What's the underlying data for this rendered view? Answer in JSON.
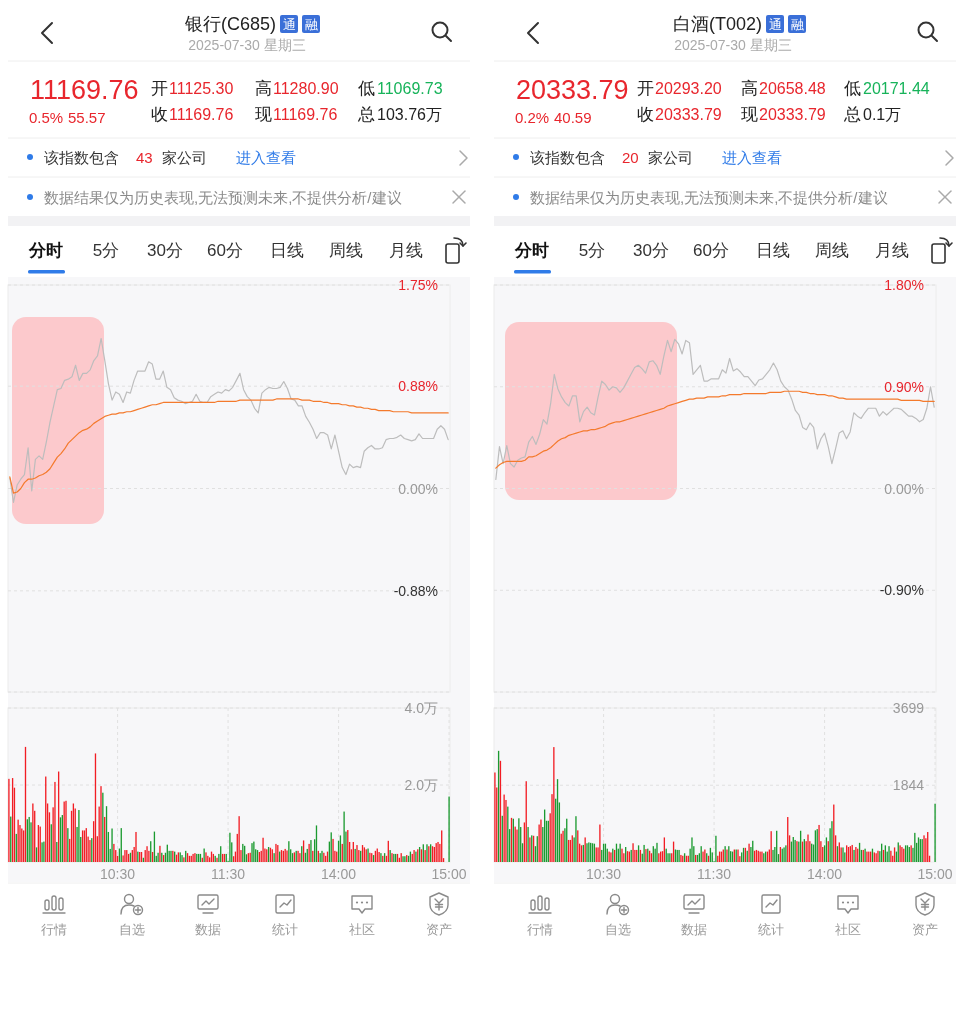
{
  "chart_data": [
    {
      "type": "other",
      "title": "银行(C685)",
      "subtitle": "2025-07-30 星期三",
      "annotations": [
        "通",
        "融",
        "11169.76",
        "0.5%",
        "55.57",
        "开",
        "11125.30",
        "高",
        "11280.90",
        "低",
        "11069.73",
        "收",
        "11169.76",
        "现",
        "11169.76",
        "总",
        "103.76万",
        "该指数包含",
        "43",
        "家公司",
        "进入查看",
        "数据结果仅为历史表现,无法预测未来,不提供分析/建议",
        "分时",
        "5分",
        "30分",
        "60分",
        "日线",
        "周线",
        "月线"
      ]
    },
    {
      "type": "line",
      "ylim": [
        -1.75,
        1.75
      ],
      "yticks": [
        {
          "value": 1.75,
          "label": "1.75%"
        },
        {
          "value": 0.88,
          "label": "0.88%"
        },
        {
          "value": 0,
          "label": "0.00%"
        },
        {
          "value": -0.88,
          "label": "-0.88%"
        },
        {
          "value": -1.75,
          "label": null
        }
      ],
      "grid": "y",
      "categories": [
        null,
        null,
        null,
        null,
        null,
        null,
        null,
        null,
        null,
        null,
        null,
        null,
        null,
        null,
        null,
        null,
        null,
        null,
        null,
        null,
        null,
        null,
        null,
        null,
        null,
        null,
        null,
        null,
        null,
        null,
        null,
        null,
        null,
        null,
        null,
        null,
        null,
        null,
        null,
        null,
        null,
        null,
        null,
        null,
        null,
        null,
        null,
        null,
        null,
        null,
        null,
        null,
        null,
        null,
        null,
        null,
        null,
        null,
        null,
        null,
        null,
        null,
        null,
        null,
        null,
        null,
        null,
        null,
        null,
        null,
        null,
        null,
        null,
        null,
        null,
        null,
        null,
        null,
        null,
        null,
        null,
        null,
        null,
        null,
        null,
        null,
        null,
        null,
        null,
        null,
        null,
        null,
        null,
        null,
        null,
        null,
        null,
        null,
        null,
        null,
        null,
        null,
        null,
        null,
        null,
        null,
        null,
        null,
        null,
        null,
        null,
        null,
        null,
        null,
        null,
        null,
        null,
        null,
        null,
        null,
        null
      ],
      "series": [
        {
          "color": "#bdbdbd",
          "values": [
            0.09,
            -0.12,
            0.03,
            0.08,
            0.12,
            0.35,
            -0.02,
            0.25,
            0.28,
            0.25,
            0.4,
            0.57,
            0.71,
            0.85,
            0.86,
            0.93,
            0.94,
            0.96,
            1.06,
            0.93,
            0.99,
            0.99,
            1.02,
            1.1,
            1.14,
            1.29,
            1.1,
            0.9,
            0.76,
            0.83,
            0.81,
            0.74,
            0.83,
            0.82,
            0.93,
            1.01,
            1.01,
            1.01,
            1.09,
            1.07,
            0.94,
            0.94,
            1.01,
            0.87,
            0.85,
            0.78,
            0.76,
            0.75,
            0.73,
            0.74,
            0.75,
            0.81,
            0.75,
            0.74,
            0.74,
            0.79,
            0.81,
            0.83,
            0.82,
            0.85,
            0.84,
            0.87,
            0.93,
            0.99,
            0.85,
            0.79,
            0.76,
            0.69,
            0.65,
            0.82,
            0.85,
            0.87,
            0.86,
            0.86,
            0.87,
            0.92,
            0.86,
            0.77,
            0.76,
            0.71,
            0.71,
            0.62,
            0.57,
            0.51,
            0.43,
            0.48,
            0.48,
            0.46,
            0.34,
            0.46,
            0.32,
            0.18,
            0.12,
            0.21,
            0.18,
            0.19,
            0.18,
            0.32,
            0.35,
            0.37,
            0.34,
            0.34,
            0.35,
            0.42,
            0.43,
            0.43,
            0.44,
            0.46,
            0.43,
            0.42,
            0.41,
            0.42,
            0.47,
            0.43,
            0.43,
            0.43,
            0.43,
            0.51,
            0.54,
            0.51,
            0.42
          ]
        },
        {
          "color": "#f47a2c",
          "values": [
            0.1,
            -0.04,
            -0.03,
            0.0,
            0.05,
            0.08,
            0.08,
            0.09,
            0.11,
            0.12,
            0.14,
            0.17,
            0.22,
            0.27,
            0.3,
            0.34,
            0.39,
            0.42,
            0.45,
            0.48,
            0.5,
            0.51,
            0.53,
            0.56,
            0.58,
            0.6,
            0.62,
            0.63,
            0.64,
            0.64,
            0.65,
            0.65,
            0.66,
            0.66,
            0.67,
            0.68,
            0.69,
            0.7,
            0.71,
            0.72,
            0.72,
            0.73,
            0.74,
            0.74,
            0.74,
            0.74,
            0.74,
            0.74,
            0.74,
            0.74,
            0.74,
            0.74,
            0.74,
            0.74,
            0.74,
            0.74,
            0.74,
            0.75,
            0.75,
            0.75,
            0.75,
            0.75,
            0.75,
            0.76,
            0.76,
            0.76,
            0.76,
            0.76,
            0.76,
            0.76,
            0.76,
            0.76,
            0.76,
            0.77,
            0.77,
            0.77,
            0.77,
            0.77,
            0.77,
            0.77,
            0.76,
            0.76,
            0.76,
            0.75,
            0.75,
            0.75,
            0.74,
            0.74,
            0.73,
            0.73,
            0.73,
            0.72,
            0.72,
            0.71,
            0.71,
            0.7,
            0.7,
            0.69,
            0.69,
            0.68,
            0.68,
            0.67,
            0.67,
            0.67,
            0.67,
            0.66,
            0.66,
            0.66,
            0.66,
            0.66,
            0.65,
            0.65,
            0.65,
            0.65,
            0.65,
            0.65,
            0.65,
            0.65,
            0.65,
            0.65,
            0.65
          ]
        }
      ]
    },
    {
      "type": "bar",
      "ylim": [
        0,
        4
      ],
      "yticks": [
        {
          "value": 2,
          "label": "2.0万"
        },
        {
          "value": 4,
          "label": "4.0万"
        }
      ],
      "grid": true,
      "categories": [
        null,
        null,
        null,
        null,
        null,
        null,
        null,
        null,
        null,
        null,
        null,
        null,
        null,
        null,
        null,
        null,
        null,
        null,
        null,
        null,
        null,
        null,
        null,
        null,
        null,
        null,
        null,
        null,
        null,
        null,
        null,
        null,
        null,
        null,
        null,
        null,
        null,
        null,
        null,
        null,
        null,
        null,
        null,
        null,
        null,
        null,
        null,
        null,
        null,
        null,
        null,
        null,
        null,
        null,
        null,
        null,
        null,
        null,
        null,
        "10:30",
        null,
        null,
        null,
        null,
        null,
        null,
        null,
        null,
        null,
        null,
        null,
        null,
        null,
        null,
        null,
        null,
        null,
        null,
        null,
        null,
        null,
        null,
        null,
        null,
        null,
        null,
        null,
        null,
        null,
        null,
        null,
        null,
        null,
        null,
        null,
        null,
        null,
        null,
        null,
        null,
        null,
        null,
        null,
        null,
        null,
        null,
        null,
        null,
        null,
        null,
        null,
        null,
        null,
        null,
        null,
        null,
        null,
        null,
        null,
        "11:30",
        null,
        null,
        null,
        null,
        null,
        null,
        null,
        null,
        null,
        null,
        null,
        null,
        null,
        null,
        null,
        null,
        null,
        null,
        null,
        null,
        null,
        null,
        null,
        null,
        null,
        null,
        null,
        null,
        null,
        null,
        null,
        null,
        null,
        null,
        null,
        null,
        null,
        null,
        null,
        null,
        null,
        null,
        null,
        null,
        null,
        null,
        null,
        null,
        null,
        null,
        null,
        null,
        null,
        null,
        null,
        null,
        null,
        null,
        null,
        "14:00",
        null,
        null,
        null,
        null,
        null,
        null,
        null,
        null,
        null,
        null,
        null,
        null,
        null,
        null,
        null,
        null,
        null,
        null,
        null,
        null,
        null,
        null,
        null,
        null,
        null,
        null,
        null,
        null,
        null,
        null,
        null,
        null,
        null,
        null,
        null,
        null,
        null,
        null,
        null,
        null,
        null,
        null,
        null,
        null,
        null,
        null,
        null,
        null,
        null,
        null,
        null,
        null,
        null,
        null,
        null,
        null,
        null,
        null,
        null,
        "15:00"
      ],
      "values": [
        2.16,
        1.18,
        2.18,
        1.93,
        0.73,
        1.1,
        0.96,
        0.87,
        0.82,
        2.99,
        1.11,
        1.17,
        1.03,
        1.52,
        1.33,
        0.38,
        0.96,
        0.92,
        0.51,
        0.53,
        2.22,
        1.52,
        1.29,
        0.98,
        1.42,
        2.08,
        0.52,
        2.35,
        1.16,
        1.22,
        1.57,
        1.59,
        0.88,
        0.6,
        1.33,
        1.52,
        1.39,
        0.91,
        1.35,
        0.65,
        0.82,
        0.82,
        0.88,
        0.66,
        0.57,
        0.62,
        1.06,
        2.82,
        0.67,
        1.44,
        1.97,
        1.8,
        1.17,
        1.45,
        0.78,
        0.34,
        0.87,
        0.47,
        0.31,
        0.16,
        0.35,
        0.88,
        0.17,
        0.31,
        0.31,
        0.21,
        0.24,
        0.31,
        0.39,
        0.78,
        0.27,
        0.26,
        0.26,
        0.11,
        0.31,
        0.41,
        0.29,
        0.54,
        0.26,
        0.79,
        0.16,
        0.24,
        0.42,
        0.24,
        0.18,
        0.24,
        0.45,
        0.29,
        0.29,
        0.29,
        0.27,
        0.19,
        0.25,
        0.25,
        0.18,
        0.12,
        0.29,
        0.23,
        0.16,
        0.16,
        0.21,
        0.23,
        0.21,
        0.21,
        0.21,
        0.11,
        0.35,
        0.25,
        0.16,
        0.12,
        0.27,
        0.21,
        0.16,
        0.11,
        0.21,
        0.41,
        0.21,
        0.21,
        0.21,
        0.03,
        0.76,
        0.51,
        0.15,
        0.27,
        0.73,
        1.19,
        0.31,
        0.47,
        0.42,
        0.2,
        0.23,
        0.24,
        0.49,
        0.53,
        0.33,
        0.31,
        0.26,
        0.29,
        0.63,
        0.35,
        0.33,
        0.39,
        0.37,
        0.33,
        0.23,
        0.47,
        0.44,
        0.27,
        0.31,
        0.29,
        0.34,
        0.3,
        0.54,
        0.33,
        0.23,
        0.25,
        0.29,
        0.29,
        0.23,
        0.41,
        0.56,
        0.24,
        0.34,
        0.47,
        0.57,
        0.29,
        0.59,
        0.95,
        0.29,
        0.23,
        0.29,
        0.24,
        0.16,
        0.27,
        0.53,
        0.77,
        0.6,
        0.29,
        0.27,
        0.55,
        0.69,
        0.47,
        1.31,
        0.79,
        0.83,
        0.52,
        0.33,
        0.52,
        0.34,
        0.44,
        0.31,
        0.29,
        0.44,
        0.38,
        0.33,
        0.35,
        0.24,
        0.23,
        0.18,
        0.29,
        0.35,
        0.26,
        0.23,
        0.16,
        0.23,
        0.16,
        0.55,
        0.31,
        0.23,
        0.21,
        0.21,
        0.21,
        0.11,
        0.23,
        0.15,
        0.15,
        0.18,
        0.16,
        0.27,
        0.21,
        0.31,
        0.27,
        0.33,
        0.39,
        0.33,
        0.46,
        0.31,
        0.46,
        0.41,
        0.46,
        0.41,
        0.39,
        0.49,
        0.52,
        0.47,
        0.82,
        0.1,
        null,
        null,
        1.7
      ],
      "colors": [
        "#f21d24",
        "#1b9a30",
        "#f21d24",
        "#f21d24",
        "#1b9a30",
        "#f21d24",
        "#f21d24",
        "#f21d24",
        "#f21d24",
        "#f21d24",
        "#1b9a30",
        "#1b9a30",
        "#1b9a30",
        "#f21d24",
        "#f21d24",
        "#1b9a30",
        "#f21d24",
        "#f21d24",
        "#1b9a30",
        "#1b9a30",
        "#f21d24",
        "#f21d24",
        "#f21d24",
        "#1b9a30",
        "#f21d24",
        "#f21d24",
        "#1b9a30",
        "#f21d24",
        "#1b9a30",
        "#1b9a30",
        "#f21d24",
        "#f21d24",
        "#1b9a30",
        "#f21d24",
        "#f21d24",
        "#f21d24",
        "#f21d24",
        "#1b9a30",
        "#1b9a30",
        "#1b9a30",
        "#f21d24",
        "#f21d24",
        "#f21d24",
        "#f21d24",
        "#f21d24",
        "#1b9a30",
        "#f21d24",
        "#f21d24",
        "#f21d24",
        "#f21d24",
        "#f21d24",
        "#1b9a30",
        "#f21d24",
        "#1b9a30",
        "#1b9a30",
        "#1b9a30",
        "#1b9a30",
        "#f21d24",
        "#f21d24",
        "#f21d24",
        "#1b9a30",
        "#1b9a30",
        "#f21d24",
        "#f21d24",
        "#f21d24",
        "#f21d24",
        "#1b9a30",
        "#f21d24",
        "#f21d24",
        "#f21d24",
        "#1b9a30",
        "#f21d24",
        "#f21d24",
        "#1b9a30",
        "#f21d24",
        "#f21d24",
        "#f21d24",
        "#1b9a30",
        "#f21d24",
        "#1b9a30",
        "#1b9a30",
        "#1b9a30",
        "#f21d24",
        "#1b9a30",
        "#f21d24",
        "#1b9a30",
        "#1b9a30",
        "#1b9a30",
        "#1b9a30",
        "#f21d24",
        "#1b9a30",
        "#f21d24",
        "#f21d24",
        "#1b9a30",
        "#1b9a30",
        "#f21d24",
        "#1b9a30",
        "#f21d24",
        "#f21d24",
        "#f21d24",
        "#f21d24",
        "#f21d24",
        "#1b9a30",
        "#1b9a30",
        "#1b9a30",
        "#f21d24",
        "#1b9a30",
        "#f21d24",
        "#f21d24",
        "#f21d24",
        "#f21d24",
        "#f21d24",
        "#1b9a30",
        "#f21d24",
        "#1b9a30",
        "#1b9a30",
        "#f21d24",
        "#f21d24",
        "#1b9a30",
        "#1b9a30",
        "#1b9a30",
        "#1b9a30",
        "#f21d24",
        "#f21d24",
        "#f21d24",
        "#f21d24",
        "#f21d24",
        "#1b9a30",
        "#1b9a30",
        "#1b9a30",
        "#f21d24",
        "#f21d24",
        "#1b9a30",
        "#1b9a30",
        "#1b9a30",
        "#1b9a30",
        "#f21d24",
        "#f21d24",
        "#f21d24",
        "#f21d24",
        "#f21d24",
        "#1b9a30",
        "#f21d24",
        "#f21d24",
        "#1b9a30",
        "#f21d24",
        "#f21d24",
        "#1b9a30",
        "#f21d24",
        "#f21d24",
        "#f21d24",
        "#f21d24",
        "#1b9a30",
        "#1b9a30",
        "#1b9a30",
        "#f21d24",
        "#1b9a30",
        "#f21d24",
        "#f21d24",
        "#1b9a30",
        "#f21d24",
        "#1b9a30",
        "#1b9a30",
        "#f21d24",
        "#1b9a30",
        "#f21d24",
        "#1b9a30",
        "#1b9a30",
        "#f21d24",
        "#1b9a30",
        "#1b9a30",
        "#f21d24",
        "#f21d24",
        "#f21d24",
        "#1b9a30",
        "#1b9a30",
        "#f21d24",
        "#f21d24",
        "#f21d24",
        "#1b9a30",
        "#1b9a30",
        "#f21d24",
        "#1b9a30",
        "#1b9a30",
        "#f21d24",
        "#f21d24",
        "#f21d24",
        "#f21d24",
        "#1b9a30",
        "#f21d24",
        "#f21d24",
        "#1b9a30",
        "#f21d24",
        "#f21d24",
        "#f21d24",
        "#1b9a30",
        "#f21d24",
        "#f21d24",
        "#1b9a30",
        "#f21d24",
        "#f21d24",
        "#f21d24",
        "#1b9a30",
        "#f21d24",
        "#1b9a30",
        "#f21d24",
        "#f21d24",
        "#1b9a30",
        "#f21d24",
        "#1b9a30",
        "#1b9a30",
        "#f21d24",
        "#f21d24",
        "#f21d24",
        "#1b9a30",
        "#1b9a30",
        "#f21d24",
        "#1b9a30",
        "#1b9a30",
        "#f21d24",
        "#f21d24",
        "#1b9a30",
        "#f21d24",
        "#1b9a30",
        "#f21d24",
        "#1b9a30",
        "#f21d24",
        "#1b9a30",
        "#f21d24",
        "#1b9a30",
        "#f21d24",
        "#f21d24",
        "#f21d24",
        "#f21d24",
        "#f21d24",
        "#f21d24",
        "#f21d24",
        null,
        null,
        "#1b9a30"
      ]
    },
    {
      "type": "other",
      "annotations": [
        "行情",
        "自选",
        "数据",
        "统计",
        "社区",
        "资产"
      ]
    },
    {
      "type": "other",
      "title": "白酒(T002)",
      "subtitle": "2025-07-30 星期三",
      "annotations": [
        "通",
        "融",
        "20333.79",
        "0.2%",
        "40.59",
        "开",
        "20293.20",
        "高",
        "20658.48",
        "低",
        "20171.44",
        "收",
        "20333.79",
        "现",
        "20333.79",
        "总",
        "0.1万",
        "该指数包含",
        "20",
        "家公司",
        "进入查看",
        "数据结果仅为历史表现,无法预测未来,不提供分析/建议",
        "分时",
        "5分",
        "30分",
        "60分",
        "日线",
        "周线",
        "月线"
      ]
    },
    {
      "type": "line",
      "ylim": [
        -1.8,
        1.8
      ],
      "yticks": [
        {
          "value": 1.8,
          "label": "1.80%"
        },
        {
          "value": 0.9,
          "label": "0.90%"
        },
        {
          "value": 0,
          "label": "0.00%"
        },
        {
          "value": -0.9,
          "label": "-0.90%"
        },
        {
          "value": -1.8,
          "label": null
        }
      ],
      "grid": "y",
      "categories": [
        null,
        null,
        null,
        null,
        null,
        null,
        null,
        null,
        null,
        null,
        null,
        null,
        null,
        null,
        null,
        null,
        null,
        null,
        null,
        null,
        null,
        null,
        null,
        null,
        null,
        null,
        null,
        null,
        null,
        null,
        null,
        null,
        null,
        null,
        null,
        null,
        null,
        null,
        null,
        null,
        null,
        null,
        null,
        null,
        null,
        null,
        null,
        null,
        null,
        null,
        null,
        null,
        null,
        null,
        null,
        null,
        null,
        null,
        null,
        null,
        null,
        null,
        null,
        null,
        null,
        null,
        null,
        null,
        null,
        null,
        null,
        null,
        null,
        null,
        null,
        null,
        null,
        null,
        null,
        null,
        null,
        null,
        null,
        null,
        null,
        null,
        null,
        null,
        null,
        null,
        null,
        null,
        null,
        null,
        null,
        null,
        null,
        null,
        null,
        null,
        null,
        null,
        null,
        null,
        null,
        null,
        null,
        null,
        null,
        null,
        null,
        null,
        null,
        null,
        null,
        null,
        null,
        null,
        null,
        null,
        null
      ],
      "series": [
        {
          "color": "#bdbdbd",
          "values": [
            0.08,
            0.37,
            0.22,
            0.38,
            0.22,
            0.19,
            0.25,
            0.27,
            0.28,
            0.41,
            0.46,
            0.39,
            0.48,
            0.61,
            0.57,
            0.75,
            1.01,
            0.88,
            0.81,
            0.76,
            0.73,
            0.82,
            0.82,
            0.59,
            0.68,
            0.72,
            0.67,
            0.65,
            0.81,
            0.95,
            0.92,
            0.87,
            0.9,
            0.89,
            0.85,
            0.89,
            0.95,
            1.01,
            1.07,
            1.09,
            1.06,
            1.02,
            1.12,
            1.13,
            1.09,
            1.01,
            1.17,
            1.31,
            1.21,
            1.32,
            1.28,
            1.19,
            1.31,
            1.29,
            1.01,
            1.05,
            1.09,
            0.95,
            0.95,
            0.97,
            0.97,
            0.97,
            1.05,
            1.02,
            1.15,
            1.04,
            1.06,
            1.03,
            0.99,
            0.99,
            0.95,
            0.91,
            0.96,
            0.97,
            1.01,
            1.05,
            1.11,
            1.05,
            0.95,
            0.9,
            0.87,
            0.79,
            0.69,
            0.65,
            0.54,
            0.52,
            0.58,
            0.54,
            0.35,
            0.44,
            0.49,
            0.37,
            0.22,
            0.35,
            0.49,
            0.51,
            0.44,
            0.5,
            0.67,
            0.64,
            0.62,
            0.67,
            0.71,
            0.71,
            0.71,
            0.64,
            0.68,
            0.65,
            0.68,
            0.71,
            0.71,
            0.7,
            0.67,
            0.64,
            0.64,
            0.62,
            0.59,
            0.61,
            0.71,
            0.9,
            0.72
          ]
        },
        {
          "color": "#f47a2c",
          "values": [
            0.18,
            0.21,
            0.23,
            0.24,
            0.24,
            0.24,
            0.24,
            0.24,
            0.25,
            0.28,
            0.28,
            0.29,
            0.31,
            0.33,
            0.34,
            0.36,
            0.39,
            0.42,
            0.44,
            0.45,
            0.47,
            0.48,
            0.49,
            0.5,
            0.51,
            0.51,
            0.52,
            0.52,
            0.53,
            0.54,
            0.55,
            0.57,
            0.58,
            0.59,
            0.59,
            0.6,
            0.61,
            0.62,
            0.63,
            0.64,
            0.65,
            0.66,
            0.67,
            0.68,
            0.69,
            0.7,
            0.71,
            0.73,
            0.74,
            0.75,
            0.76,
            0.77,
            0.78,
            0.79,
            0.79,
            0.8,
            0.8,
            0.8,
            0.81,
            0.81,
            0.81,
            0.81,
            0.82,
            0.82,
            0.83,
            0.83,
            0.83,
            0.83,
            0.84,
            0.84,
            0.84,
            0.84,
            0.84,
            0.84,
            0.84,
            0.85,
            0.85,
            0.85,
            0.85,
            0.86,
            0.86,
            0.86,
            0.86,
            0.86,
            0.85,
            0.85,
            0.84,
            0.84,
            0.83,
            0.83,
            0.83,
            0.82,
            0.82,
            0.81,
            0.8,
            0.8,
            0.79,
            0.79,
            0.79,
            0.79,
            0.79,
            0.79,
            0.79,
            0.79,
            0.79,
            0.79,
            0.79,
            0.79,
            0.79,
            0.79,
            0.79,
            0.78,
            0.78,
            0.78,
            0.78,
            0.78,
            0.78,
            0.77,
            0.77,
            0.77,
            0.77
          ]
        }
      ]
    },
    {
      "type": "bar",
      "ylim": [
        0,
        3699
      ],
      "yticks": [
        1844,
        3699
      ],
      "grid": true,
      "categories": [
        null,
        null,
        null,
        null,
        null,
        null,
        null,
        null,
        null,
        null,
        null,
        null,
        null,
        null,
        null,
        null,
        null,
        null,
        null,
        null,
        null,
        null,
        null,
        null,
        null,
        null,
        null,
        null,
        null,
        null,
        null,
        null,
        null,
        null,
        null,
        null,
        null,
        null,
        null,
        null,
        null,
        null,
        null,
        null,
        null,
        null,
        null,
        null,
        null,
        null,
        null,
        null,
        null,
        null,
        null,
        null,
        null,
        null,
        null,
        "10:30",
        null,
        null,
        null,
        null,
        null,
        null,
        null,
        null,
        null,
        null,
        null,
        null,
        null,
        null,
        null,
        null,
        null,
        null,
        null,
        null,
        null,
        null,
        null,
        null,
        null,
        null,
        null,
        null,
        null,
        null,
        null,
        null,
        null,
        null,
        null,
        null,
        null,
        null,
        null,
        null,
        null,
        null,
        null,
        null,
        null,
        null,
        null,
        null,
        null,
        null,
        null,
        null,
        null,
        null,
        null,
        null,
        null,
        null,
        null,
        "11:30",
        null,
        null,
        null,
        null,
        null,
        null,
        null,
        null,
        null,
        null,
        null,
        null,
        null,
        null,
        null,
        null,
        null,
        null,
        null,
        null,
        null,
        null,
        null,
        null,
        null,
        null,
        null,
        null,
        null,
        null,
        null,
        null,
        null,
        null,
        null,
        null,
        null,
        null,
        null,
        null,
        null,
        null,
        null,
        null,
        null,
        null,
        null,
        null,
        null,
        null,
        null,
        null,
        null,
        null,
        null,
        null,
        null,
        null,
        null,
        "14:00",
        null,
        null,
        null,
        null,
        null,
        null,
        null,
        null,
        null,
        null,
        null,
        null,
        null,
        null,
        null,
        null,
        null,
        null,
        null,
        null,
        null,
        null,
        null,
        null,
        null,
        null,
        null,
        null,
        null,
        null,
        null,
        null,
        null,
        null,
        null,
        null,
        null,
        null,
        null,
        null,
        null,
        null,
        null,
        null,
        null,
        null,
        null,
        null,
        null,
        null,
        null,
        null,
        null,
        null,
        null,
        null,
        null,
        null,
        null,
        "15:00"
      ],
      "values": [
        2150,
        1790,
        2670,
        2430,
        1110,
        1620,
        1490,
        1330,
        790,
        1060,
        1040,
        850,
        780,
        1050,
        840,
        450,
        950,
        1940,
        840,
        590,
        640,
        630,
        380,
        620,
        900,
        1020,
        840,
        1260,
        990,
        990,
        1170,
        1630,
        2760,
        1520,
        1990,
        1430,
        680,
        750,
        810,
        1040,
        530,
        530,
        640,
        590,
        1100,
        760,
        440,
        400,
        410,
        590,
        450,
        470,
        460,
        450,
        440,
        350,
        350,
        900,
        290,
        440,
        440,
        320,
        250,
        230,
        320,
        290,
        440,
        320,
        440,
        320,
        210,
        360,
        260,
        250,
        290,
        450,
        290,
        290,
        400,
        290,
        200,
        410,
        310,
        320,
        270,
        210,
        380,
        320,
        460,
        210,
        250,
        260,
        590,
        320,
        210,
        210,
        210,
        490,
        300,
        290,
        290,
        170,
        150,
        210,
        150,
        150,
        320,
        590,
        380,
        170,
        170,
        210,
        380,
        250,
        300,
        210,
        150,
        340,
        230,
        20,
        630,
        150,
        250,
        250,
        300,
        380,
        300,
        380,
        260,
        250,
        300,
        300,
        300,
        140,
        230,
        340,
        340,
        270,
        440,
        360,
        510,
        270,
        290,
        270,
        250,
        250,
        210,
        250,
        250,
        300,
        740,
        290,
        360,
        750,
        190,
        360,
        320,
        350,
        400,
        1080,
        640,
        490,
        600,
        530,
        500,
        490,
        750,
        490,
        550,
        500,
        660,
        500,
        440,
        420,
        760,
        790,
        890,
        500,
        360,
        400,
        590,
        500,
        810,
        980,
        1380,
        640,
        380,
        470,
        350,
        350,
        230,
        400,
        360,
        380,
        410,
        290,
        360,
        320,
        460,
        290,
        290,
        320,
        250,
        250,
        250,
        320,
        230,
        210,
        270,
        260,
        440,
        290,
        400,
        250,
        380,
        270,
        150,
        350,
        250,
        470,
        400,
        360,
        320,
        400,
        400,
        360,
        400,
        340,
        700,
        460,
        590,
        550,
        550,
        640,
        570,
        720,
        150,
        null,
        null,
        1400
      ],
      "colors": [
        "#f21d24",
        "#f21d24",
        "#1b9a30",
        "#f21d24",
        "#1b9a30",
        "#f21d24",
        "#f21d24",
        "#1b9a30",
        "#1b9a30",
        "#f21d24",
        "#1b9a30",
        "#f21d24",
        "#f21d24",
        "#1b9a30",
        "#1b9a30",
        "#1b9a30",
        "#f21d24",
        "#f21d24",
        "#1b9a30",
        "#f21d24",
        "#1b9a30",
        "#f21d24",
        "#1b9a30",
        "#1b9a30",
        "#f21d24",
        "#f21d24",
        "#1b9a30",
        "#1b9a30",
        "#1b9a30",
        "#1b9a30",
        "#f21d24",
        "#f21d24",
        "#f21d24",
        "#1b9a30",
        "#1b9a30",
        "#1b9a30",
        "#f21d24",
        "#f21d24",
        "#1b9a30",
        "#1b9a30",
        "#f21d24",
        "#f21d24",
        "#f21d24",
        "#1b9a30",
        "#1b9a30",
        "#f21d24",
        "#f21d24",
        "#f21d24",
        "#1b9a30",
        "#f21d24",
        "#1b9a30",
        "#1b9a30",
        "#1b9a30",
        "#1b9a30",
        "#1b9a30",
        "#f21d24",
        "#f21d24",
        "#f21d24",
        "#1b9a30",
        "#1b9a30",
        "#1b9a30",
        "#1b9a30",
        "#f21d24",
        "#f21d24",
        "#1b9a30",
        "#f21d24",
        "#1b9a30",
        "#1b9a30",
        "#1b9a30",
        "#f21d24",
        "#f21d24",
        "#1b9a30",
        "#f21d24",
        "#f21d24",
        "#1b9a30",
        "#f21d24",
        "#f21d24",
        "#f21d24",
        "#1b9a30",
        "#f21d24",
        "#1b9a30",
        "#1b9a30",
        "#f21d24",
        "#1b9a30",
        "#f21d24",
        "#f21d24",
        "#1b9a30",
        "#1b9a30",
        "#1b9a30",
        "#f21d24",
        "#f21d24",
        "#f21d24",
        "#f21d24",
        "#1b9a30",
        "#1b9a30",
        "#1b9a30",
        "#f21d24",
        "#f21d24",
        "#1b9a30",
        "#1b9a30",
        "#1b9a30",
        "#f21d24",
        "#f21d24",
        "#1b9a30",
        "#f21d24",
        "#f21d24",
        "#1b9a30",
        "#1b9a30",
        "#1b9a30",
        "#f21d24",
        "#1b9a30",
        "#1b9a30",
        "#1b9a30",
        "#f21d24",
        "#f21d24",
        "#1b9a30",
        "#f21d24",
        "#1b9a30",
        "#1b9a30",
        "#1b9a30",
        "#1b9a30",
        "#f21d24",
        "#f21d24",
        "#f21d24",
        "#f21d24",
        "#1b9a30",
        "#f21d24",
        "#1b9a30",
        "#1b9a30",
        "#1b9a30",
        "#f21d24",
        "#1b9a30",
        "#f21d24",
        "#f21d24",
        "#1b9a30",
        "#1b9a30",
        "#f21d24",
        "#1b9a30",
        "#f21d24",
        "#1b9a30",
        "#1b9a30",
        "#f21d24",
        "#f21d24",
        "#f21d24",
        "#f21d24",
        "#f21d24",
        "#1b9a30",
        "#1b9a30",
        "#f21d24",
        "#f21d24",
        "#f21d24",
        "#1b9a30",
        "#1b9a30",
        "#1b9a30",
        "#1b9a30",
        "#f21d24",
        "#1b9a30",
        "#1b9a30",
        "#1b9a30",
        "#f21d24",
        "#f21d24",
        "#1b9a30",
        "#1b9a30",
        "#1b9a30",
        "#f21d24",
        "#1b9a30",
        "#1b9a30",
        "#f21d24",
        "#1b9a30",
        "#f21d24",
        "#f21d24",
        "#f21d24",
        "#1b9a30",
        "#1b9a30",
        "#1b9a30",
        "#1b9a30",
        "#f21d24",
        "#f21d24",
        "#f21d24",
        "#1b9a30",
        "#1b9a30",
        "#f21d24",
        "#1b9a30",
        "#1b9a30",
        "#f21d24",
        "#f21d24",
        "#1b9a30",
        "#f21d24",
        "#f21d24",
        "#1b9a30",
        "#1b9a30",
        "#f21d24",
        "#f21d24",
        "#f21d24",
        "#f21d24",
        "#1b9a30",
        "#f21d24",
        "#f21d24",
        "#1b9a30",
        "#1b9a30",
        "#f21d24",
        "#1b9a30",
        "#f21d24",
        "#f21d24",
        "#f21d24",
        "#1b9a30",
        "#f21d24",
        "#f21d24",
        "#f21d24",
        "#1b9a30",
        "#1b9a30",
        "#f21d24",
        "#1b9a30",
        "#1b9a30",
        "#1b9a30",
        "#f21d24",
        "#f21d24",
        "#f21d24",
        "#1b9a30",
        "#1b9a30",
        "#f21d24",
        "#f21d24",
        "#f21d24",
        "#1b9a30",
        "#1b9a30",
        "#1b9a30",
        "#f21d24",
        "#1b9a30",
        "#1b9a30",
        "#1b9a30",
        "#1b9a30",
        "#1b9a30",
        "#1b9a30",
        "#f21d24",
        "#f21d24",
        "#f21d24",
        "#f21d24",
        null,
        null,
        "#1b9a30"
      ]
    },
    {
      "type": "other",
      "annotations": [
        "行情",
        "自选",
        "数据",
        "统计",
        "社区",
        "资产"
      ]
    }
  ]
}
